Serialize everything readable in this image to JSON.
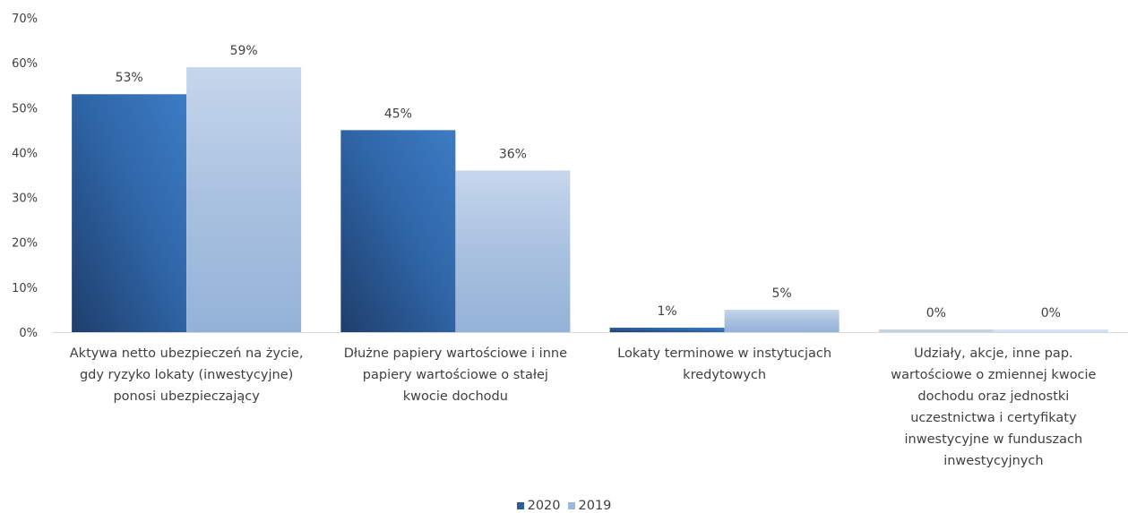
{
  "chart_data": {
    "type": "bar",
    "categories": [
      "Aktywa netto ubezpieczeń na życie, gdy ryzyko lokaty (inwestycyjne) ponosi ubezpieczający",
      "Dłużne papiery wartościowe i inne papiery wartościowe o stałej kwocie dochodu",
      "Lokaty terminowe w instytucjach kredytowych",
      "Udziały, akcje, inne pap. wartościowe o zmiennej kwocie dochodu oraz jednostki uczestnictwa i certyfikaty inwestycyjne w funduszach inwestycyjnych"
    ],
    "category_lines": [
      [
        "Aktywa netto ubezpieczeń na życie,",
        "gdy ryzyko lokaty (inwestycyjne)",
        "ponosi ubezpieczający"
      ],
      [
        "Dłużne papiery wartościowe i inne",
        "papiery wartościowe o stałej",
        "kwocie dochodu"
      ],
      [
        "Lokaty terminowe w instytucjach",
        "kredytowych"
      ],
      [
        "Udziały, akcje, inne pap.",
        "wartościowe o zmiennej kwocie",
        "dochodu oraz jednostki",
        "uczestnictwa i certyfikaty",
        "inwestycyjne w funduszach",
        "inwestycyjnych"
      ]
    ],
    "series": [
      {
        "name": "2020",
        "values": [
          53,
          45,
          1,
          0
        ],
        "labels": [
          "53%",
          "45%",
          "1%",
          "0%"
        ],
        "color": "#2E5C99"
      },
      {
        "name": "2019",
        "values": [
          59,
          36,
          5,
          0
        ],
        "labels": [
          "59%",
          "36%",
          "5%",
          "0%"
        ],
        "color": "#9BB7DB"
      }
    ],
    "ylim": [
      0,
      70
    ],
    "yticks": [
      "0%",
      "10%",
      "20%",
      "30%",
      "40%",
      "50%",
      "60%",
      "70%"
    ],
    "grid": false,
    "legend_position": "bottom-center",
    "title": "",
    "xlabel": "",
    "ylabel": ""
  }
}
